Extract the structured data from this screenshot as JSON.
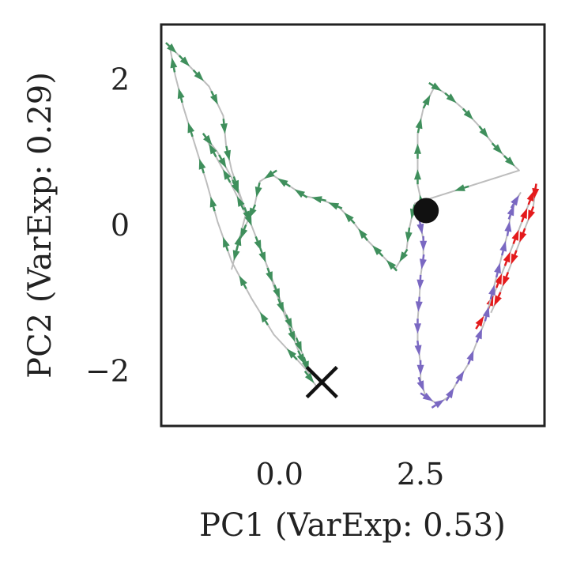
{
  "chart_data": {
    "type": "line",
    "title": "",
    "xlabel": "PC1 (VarExp: 0.53)",
    "ylabel": "PC2 (VarExp: 0.29)",
    "xlim": [
      -2.1,
      4.7
    ],
    "ylim": [
      -2.75,
      2.75
    ],
    "xticks": [
      0.0,
      2.5
    ],
    "xtick_labels": [
      "0.0",
      "2.5"
    ],
    "yticks": [
      2,
      0,
      -2
    ],
    "ytick_labels": [
      "2",
      "0",
      "−2"
    ],
    "grid": false,
    "legend": "none",
    "colors": {
      "trajectory_line": "#bdbdbd",
      "axes_frame": "#222222"
    },
    "series": [
      {
        "color": "#e41a1c",
        "points": [
          [
            3.5,
            -1.4
          ],
          [
            3.7,
            -1.15
          ],
          [
            3.85,
            -0.85
          ],
          [
            4.0,
            -0.55
          ],
          [
            4.15,
            -0.25
          ],
          [
            4.3,
            0.05
          ],
          [
            4.45,
            0.35
          ],
          [
            4.55,
            0.55
          ],
          [
            4.5,
            0.25
          ],
          [
            4.35,
            -0.05
          ],
          [
            4.2,
            -0.35
          ],
          [
            4.05,
            -0.65
          ],
          [
            3.9,
            -0.95
          ],
          [
            3.75,
            -1.2
          ]
        ]
      },
      {
        "color": "#7a68c2",
        "points": [
          [
            2.45,
            0.2
          ],
          [
            2.5,
            0.0
          ],
          [
            2.55,
            -0.2
          ],
          [
            2.55,
            -0.45
          ],
          [
            2.5,
            -0.7
          ],
          [
            2.48,
            -1.0
          ],
          [
            2.45,
            -1.3
          ],
          [
            2.45,
            -1.6
          ],
          [
            2.5,
            -1.9
          ],
          [
            2.5,
            -2.15
          ],
          [
            2.6,
            -2.35
          ],
          [
            2.8,
            -2.45
          ],
          [
            3.0,
            -2.35
          ],
          [
            3.15,
            -2.15
          ],
          [
            3.35,
            -1.9
          ],
          [
            3.5,
            -1.6
          ],
          [
            3.65,
            -1.3
          ],
          [
            3.75,
            -1.0
          ],
          [
            3.85,
            -0.7
          ],
          [
            3.95,
            -0.4
          ],
          [
            4.05,
            -0.1
          ],
          [
            4.1,
            0.15
          ],
          [
            4.2,
            0.35
          ],
          [
            4.28,
            0.45
          ]
        ]
      },
      {
        "color": "#3f8f5c",
        "points": [
          [
            2.55,
            0.2
          ],
          [
            2.45,
            0.55
          ],
          [
            2.45,
            0.9
          ],
          [
            2.45,
            1.25
          ],
          [
            2.55,
            1.6
          ],
          [
            2.75,
            1.9
          ],
          [
            2.95,
            1.8
          ],
          [
            3.25,
            1.6
          ],
          [
            3.55,
            1.35
          ],
          [
            3.8,
            1.1
          ],
          [
            4.05,
            0.9
          ],
          [
            4.25,
            0.75
          ],
          [
            2.4,
            0.3
          ],
          [
            2.3,
            -0.05
          ],
          [
            2.25,
            -0.35
          ],
          [
            2.05,
            -0.6
          ],
          [
            1.8,
            -0.4
          ],
          [
            1.55,
            -0.2
          ],
          [
            1.3,
            0.05
          ],
          [
            1.05,
            0.25
          ],
          [
            0.75,
            0.35
          ],
          [
            0.45,
            0.4
          ],
          [
            0.15,
            0.55
          ],
          [
            -0.15,
            0.7
          ],
          [
            -0.35,
            0.6
          ],
          [
            -0.45,
            0.25
          ],
          [
            -0.6,
            0.0
          ],
          [
            -0.75,
            -0.3
          ],
          [
            -0.85,
            -0.6
          ],
          [
            -0.6,
            0.15
          ],
          [
            -0.85,
            0.55
          ],
          [
            -1.1,
            0.9
          ],
          [
            -1.35,
            1.25
          ],
          [
            -1.1,
            1.0
          ],
          [
            -0.85,
            0.65
          ],
          [
            -0.65,
            0.3
          ],
          [
            -0.45,
            -0.1
          ],
          [
            -0.25,
            -0.5
          ],
          [
            -0.05,
            -0.95
          ],
          [
            0.15,
            -1.35
          ],
          [
            0.35,
            -1.75
          ],
          [
            0.5,
            -2.0
          ],
          [
            -0.1,
            -1.5
          ],
          [
            -0.5,
            -1.0
          ],
          [
            -0.85,
            -0.5
          ],
          [
            -1.1,
            0.05
          ],
          [
            -1.3,
            0.6
          ],
          [
            -1.5,
            1.1
          ],
          [
            -1.7,
            1.6
          ],
          [
            -1.85,
            2.05
          ],
          [
            -1.95,
            2.45
          ],
          [
            -1.75,
            2.3
          ],
          [
            -1.5,
            2.1
          ],
          [
            -1.25,
            1.9
          ],
          [
            -1.0,
            1.5
          ],
          [
            -0.95,
            1.1
          ],
          [
            -0.85,
            0.75
          ],
          [
            -0.65,
            0.3
          ],
          [
            -0.4,
            -0.2
          ],
          [
            -0.15,
            -0.7
          ],
          [
            0.1,
            -1.2
          ],
          [
            0.3,
            -1.55
          ],
          [
            0.45,
            -1.85
          ],
          [
            0.55,
            -2.1
          ],
          [
            0.65,
            -2.2
          ]
        ]
      }
    ],
    "markers": [
      {
        "type": "start",
        "shape": "circle",
        "x": 2.6,
        "y": 0.2,
        "color": "#111111"
      },
      {
        "type": "end",
        "shape": "x",
        "x": 0.75,
        "y": -2.15,
        "color": "#111111"
      }
    ]
  }
}
